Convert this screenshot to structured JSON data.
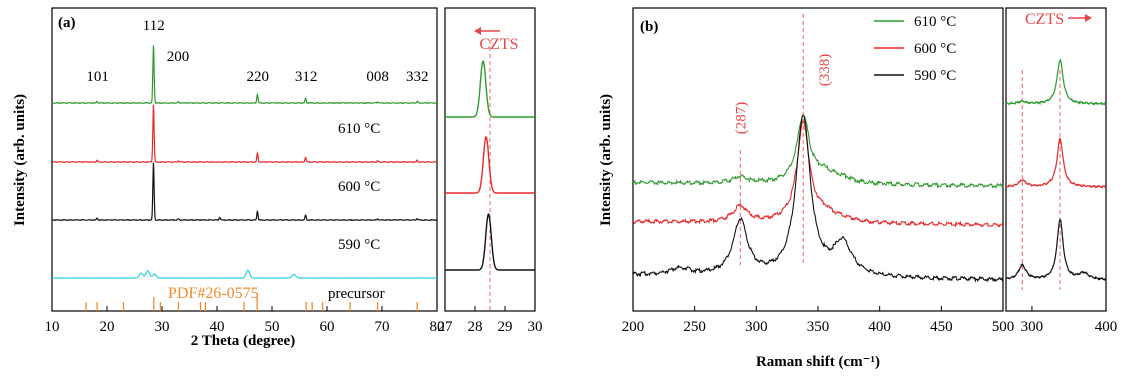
{
  "figure": {
    "panel_a_label": "(a)",
    "panel_b_label": "(b)",
    "colors": {
      "610": "#2e9b2e",
      "600": "#e8282a",
      "590": "#111111",
      "precursor": "#2bd3e6",
      "pdf": "#f08c2c",
      "ref": "#f06464"
    }
  },
  "chart_data": [
    {
      "type": "line",
      "id": "xrd",
      "xlabel": "2 Theta (degree)",
      "ylabel": "Intensity (arb. units)",
      "xlim": [
        10,
        80
      ],
      "xticks": [
        10,
        20,
        30,
        40,
        50,
        60,
        70,
        80
      ],
      "peak_labels": [
        {
          "text": "101",
          "x": 18.3
        },
        {
          "text": "112",
          "x": 28.5
        },
        {
          "text": "200",
          "x": 32.9
        },
        {
          "text": "220",
          "x": 47.4
        },
        {
          "text": "312",
          "x": 56.2
        },
        {
          "text": "008",
          "x": 69.2
        },
        {
          "text": "332",
          "x": 76.4
        }
      ],
      "series": [
        {
          "name": "610 °C",
          "key": "610",
          "peaks": [
            [
              18.2,
              0.03
            ],
            [
              28.45,
              1.0
            ],
            [
              33.0,
              0.02
            ],
            [
              47.35,
              0.15
            ],
            [
              56.1,
              0.08
            ],
            [
              69.2,
              0.02
            ],
            [
              76.4,
              0.03
            ]
          ]
        },
        {
          "name": "600 °C",
          "key": "600",
          "peaks": [
            [
              18.2,
              0.03
            ],
            [
              28.45,
              1.0
            ],
            [
              33.0,
              0.02
            ],
            [
              47.35,
              0.15
            ],
            [
              56.1,
              0.08
            ],
            [
              69.2,
              0.02
            ],
            [
              76.4,
              0.03
            ]
          ]
        },
        {
          "name": "590 °C",
          "key": "590",
          "peaks": [
            [
              18.2,
              0.03
            ],
            [
              28.45,
              1.0
            ],
            [
              33.0,
              0.02
            ],
            [
              40.5,
              0.05
            ],
            [
              47.35,
              0.15
            ],
            [
              56.1,
              0.08
            ],
            [
              69.2,
              0.02
            ],
            [
              76.4,
              0.03
            ]
          ]
        },
        {
          "name": "precursor",
          "key": "precursor",
          "peaks": [
            [
              26.2,
              0.3
            ],
            [
              27.4,
              0.45
            ],
            [
              28.6,
              0.25
            ],
            [
              45.6,
              0.5
            ],
            [
              54.0,
              0.22
            ]
          ]
        }
      ],
      "reference": {
        "name": "PDF#26-0575",
        "positions": [
          16.2,
          18.2,
          23.0,
          28.5,
          29.7,
          33.0,
          37.0,
          37.9,
          44.9,
          47.3,
          56.2,
          57.3,
          59.2,
          64.2,
          69.2,
          76.4
        ]
      }
    },
    {
      "type": "line",
      "id": "xrd_zoom",
      "xlim": [
        27,
        30
      ],
      "xticks": [
        27,
        28,
        29,
        30
      ],
      "annotation": "CZTS",
      "arrow_direction": "left",
      "ref_line_x": 28.5,
      "series": [
        {
          "key": "610",
          "center": 28.27
        },
        {
          "key": "600",
          "center": 28.37
        },
        {
          "key": "590",
          "center": 28.45
        }
      ]
    },
    {
      "type": "line",
      "id": "raman",
      "xlabel": "Raman shift (cm⁻¹)",
      "ylabel": "Intensity (arb. units)",
      "xlim": [
        200,
        500
      ],
      "xticks": [
        200,
        250,
        300,
        350,
        400,
        450,
        500
      ],
      "peak_labels": [
        {
          "text": "(287)",
          "x": 287
        },
        {
          "text": "(338)",
          "x": 338
        }
      ],
      "legend": [
        "610 °C",
        "600 °C",
        "590 °C"
      ],
      "series": [
        {
          "name": "610 °C",
          "key": "610",
          "bands": [
            [
              287,
              0.04,
              7
            ],
            [
              338,
              0.42,
              6
            ],
            [
              355,
              0.06,
              10
            ],
            [
              370,
              0.03,
              10
            ]
          ]
        },
        {
          "name": "600 °C",
          "key": "600",
          "bands": [
            [
              287,
              0.1,
              7
            ],
            [
              338,
              0.62,
              6
            ],
            [
              355,
              0.05,
              10
            ],
            [
              370,
              0.02,
              10
            ]
          ]
        },
        {
          "name": "590 °C",
          "key": "590",
          "bands": [
            [
              238,
              0.04,
              10
            ],
            [
              287,
              0.34,
              7
            ],
            [
              338,
              1.0,
              7
            ],
            [
              370,
              0.2,
              9
            ]
          ]
        }
      ]
    },
    {
      "type": "line",
      "id": "raman_zoom",
      "xlim": [
        265,
        400
      ],
      "xticks": [
        300,
        400
      ],
      "annotation": "CZTS",
      "arrow_direction": "right",
      "ref_lines_x": [
        287,
        338
      ],
      "series": [
        {
          "key": "610",
          "bands": [
            [
              287,
              0.03,
              6
            ],
            [
              338,
              0.55,
              5
            ]
          ]
        },
        {
          "key": "600",
          "bands": [
            [
              287,
              0.08,
              6
            ],
            [
              338,
              0.6,
              5
            ]
          ]
        },
        {
          "key": "590",
          "bands": [
            [
              287,
              0.18,
              6
            ],
            [
              338,
              0.75,
              5
            ],
            [
              370,
              0.08,
              8
            ]
          ]
        }
      ]
    }
  ]
}
